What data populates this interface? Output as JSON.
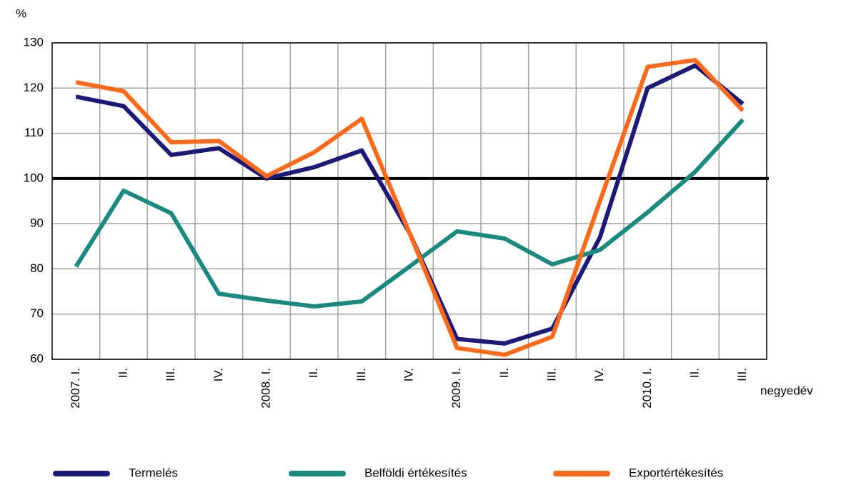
{
  "chart_data": {
    "type": "line",
    "y_unit": "%",
    "x_label": "negyedév",
    "categories": [
      "2007. I.",
      "II.",
      "III.",
      "IV.",
      "2008. I.",
      "II.",
      "III.",
      "IV.",
      "2009. I.",
      "II.",
      "III.",
      "IV.",
      "2010. I.",
      "II.",
      "III."
    ],
    "series": [
      {
        "name": "Termelés",
        "color": "#1c1a78",
        "values": [
          118.1,
          116,
          105.2,
          106.7,
          100,
          102.5,
          106.2,
          88,
          64.5,
          63.5,
          66.8,
          87,
          120,
          125,
          116.5
        ]
      },
      {
        "name": "Belföldi értékesítés",
        "color": "#1a8a7e",
        "values": [
          80.5,
          97.3,
          92.3,
          74.5,
          73,
          71.7,
          72.8,
          80.5,
          88.3,
          86.7,
          81,
          84.2,
          92.5,
          101.5,
          113
        ]
      },
      {
        "name": "Exportértékesítés",
        "color": "#ff6a1a",
        "values": [
          121.3,
          119.3,
          108,
          108.3,
          100.5,
          105.8,
          113.2,
          88,
          62.5,
          61,
          65,
          95,
          124.7,
          126.2,
          115
        ]
      }
    ],
    "reference_line": 100,
    "ylim": [
      60,
      130
    ],
    "yticks": [
      60,
      70,
      80,
      90,
      100,
      110,
      120,
      130
    ],
    "grid": true,
    "legend": "bottom"
  }
}
